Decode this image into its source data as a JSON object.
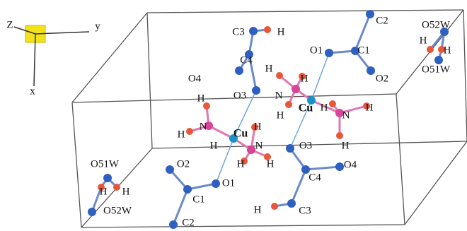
{
  "axes": {
    "z": "Z",
    "y": "y",
    "x": "x"
  },
  "atom_labels": [
    "C2",
    "O52W",
    "C3",
    "H",
    "O1",
    "C1",
    "H",
    "H",
    "O51W",
    "C4",
    "H",
    "H",
    "O2",
    "O4",
    "N",
    "O3",
    "H",
    "Cu",
    "H",
    "H",
    "H",
    "N",
    "N",
    "Cu",
    "H",
    "H",
    "H",
    "N",
    "O3",
    "H",
    "O51W",
    "O2",
    "H",
    "H",
    "O4",
    "C4",
    "H",
    "H",
    "O1",
    "C1",
    "O52W",
    "H",
    "C3",
    "C2"
  ]
}
